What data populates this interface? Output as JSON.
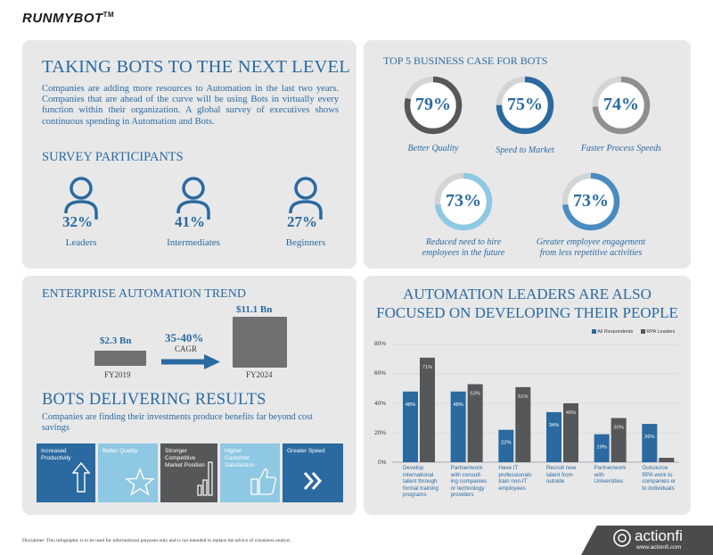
{
  "brand": {
    "name": "RUNMYBOT",
    "tm": "TM"
  },
  "intro": {
    "title": "TAKING BOTS TO THE NEXT LEVEL",
    "body": "Companies are adding more resources to Automation in the last two years. Companies that are ahead of the curve will be using Bots in virtually every function within their organization. A global survey of executives shows continuous spending in Automation and Bots."
  },
  "survey": {
    "title": "SURVEY PARTICIPANTS",
    "participants": [
      {
        "pct": "32%",
        "label": "Leaders"
      },
      {
        "pct": "41%",
        "label": "Intermediates"
      },
      {
        "pct": "27%",
        "label": "Beginners"
      }
    ]
  },
  "business_case": {
    "title": "TOP 5 BUSINESS CASE FOR BOTS",
    "items": [
      {
        "pct": "79%",
        "value": 79,
        "label": "Better Quality",
        "color": "#555759"
      },
      {
        "pct": "75%",
        "value": 75,
        "label": "Speed to Market",
        "color": "#2a6aa0"
      },
      {
        "pct": "74%",
        "value": 74,
        "label": "Faster Process Speeds",
        "color": "#8e8f91"
      },
      {
        "pct": "73%",
        "value": 73,
        "label": "Reduced need to hire employees in the future",
        "color": "#8fc8e2"
      },
      {
        "pct": "73%",
        "value": 73,
        "label": "Greater employee  engagement from less repetitive activities",
        "color": "#4a8cc0"
      }
    ]
  },
  "trend": {
    "title": "ENTERPRISE AUTOMATION TREND",
    "left_value": "$2.3 Bn",
    "left_year": "FY2019",
    "growth": "35-40%",
    "growth_label": "CAGR",
    "right_value": "$11.1 Bn",
    "right_year": "FY2024"
  },
  "results": {
    "title": "BOTS DELIVERING RESULTS",
    "body": "Companies are finding their investments produce benefits far beyond cost savings",
    "tiles": [
      {
        "label": "Increased Productivity",
        "icon": "arrow-up-icon",
        "color": "#2a6aa0"
      },
      {
        "label": "Better Quality",
        "icon": "star-icon",
        "color": "#8fc8e2"
      },
      {
        "label": "Stronger Competitive Market Position",
        "icon": "bar-chart-icon",
        "color": "#555759"
      },
      {
        "label": "Higher Customer Satisfaction",
        "icon": "thumbs-up-icon",
        "color": "#8fc8e2"
      },
      {
        "label": "Greater Speed",
        "icon": "double-chevron-icon",
        "color": "#2a6aa0"
      }
    ]
  },
  "leaders": {
    "title_line1": "AUTOMATION LEADERS ARE ALSO",
    "title_line2": "FOCUSED ON DEVELOPING THEIR PEOPLE"
  },
  "chart_data": {
    "type": "bar",
    "categories": [
      "Develop international talent through formal training programs",
      "Partner/work with consulting companies or technology providers",
      "Have IT professionals train non-IT employees",
      "Recruit new talent from outside",
      "Partner/work with Universities",
      "Outsource RPA work to companies or to individuals"
    ],
    "category_lines": [
      [
        "Develop",
        "international",
        "talent through",
        "formal training",
        "programs"
      ],
      [
        "Partner/work",
        "with consult-",
        "ing companies",
        "or technology",
        "providers"
      ],
      [
        "Have IT",
        "professionals",
        "train non-IT",
        "employees"
      ],
      [
        "Recruit new",
        "talent from",
        "outside"
      ],
      [
        "Partner/work",
        "with",
        "Universities"
      ],
      [
        "Outsource",
        "RPA work to",
        "companies or",
        "to individuals"
      ]
    ],
    "series": [
      {
        "name": "All Respondents",
        "values": [
          48,
          48,
          22,
          34,
          19,
          26
        ],
        "labels": [
          "48%",
          "48%",
          "22%",
          "34%",
          "19%",
          "26%"
        ],
        "color": "#2a6aa0"
      },
      {
        "name": "RPA Leaders",
        "values": [
          71,
          53,
          51,
          40,
          30,
          3
        ],
        "labels": [
          "71%",
          "53%",
          "51%",
          "40%",
          "30%",
          ""
        ],
        "color": "#555759"
      }
    ],
    "yticks": [
      "0%",
      "20%",
      "40%",
      "60%",
      "80%"
    ],
    "ylim": [
      0,
      80
    ],
    "legend": "top-right"
  },
  "footer": {
    "disclaimer": "Disclaimer: This infographic is to be used for informational purposes only and is not intended to replace the advice of a business analyst.",
    "company": "actionfi",
    "url": "www.actionfi.com"
  }
}
